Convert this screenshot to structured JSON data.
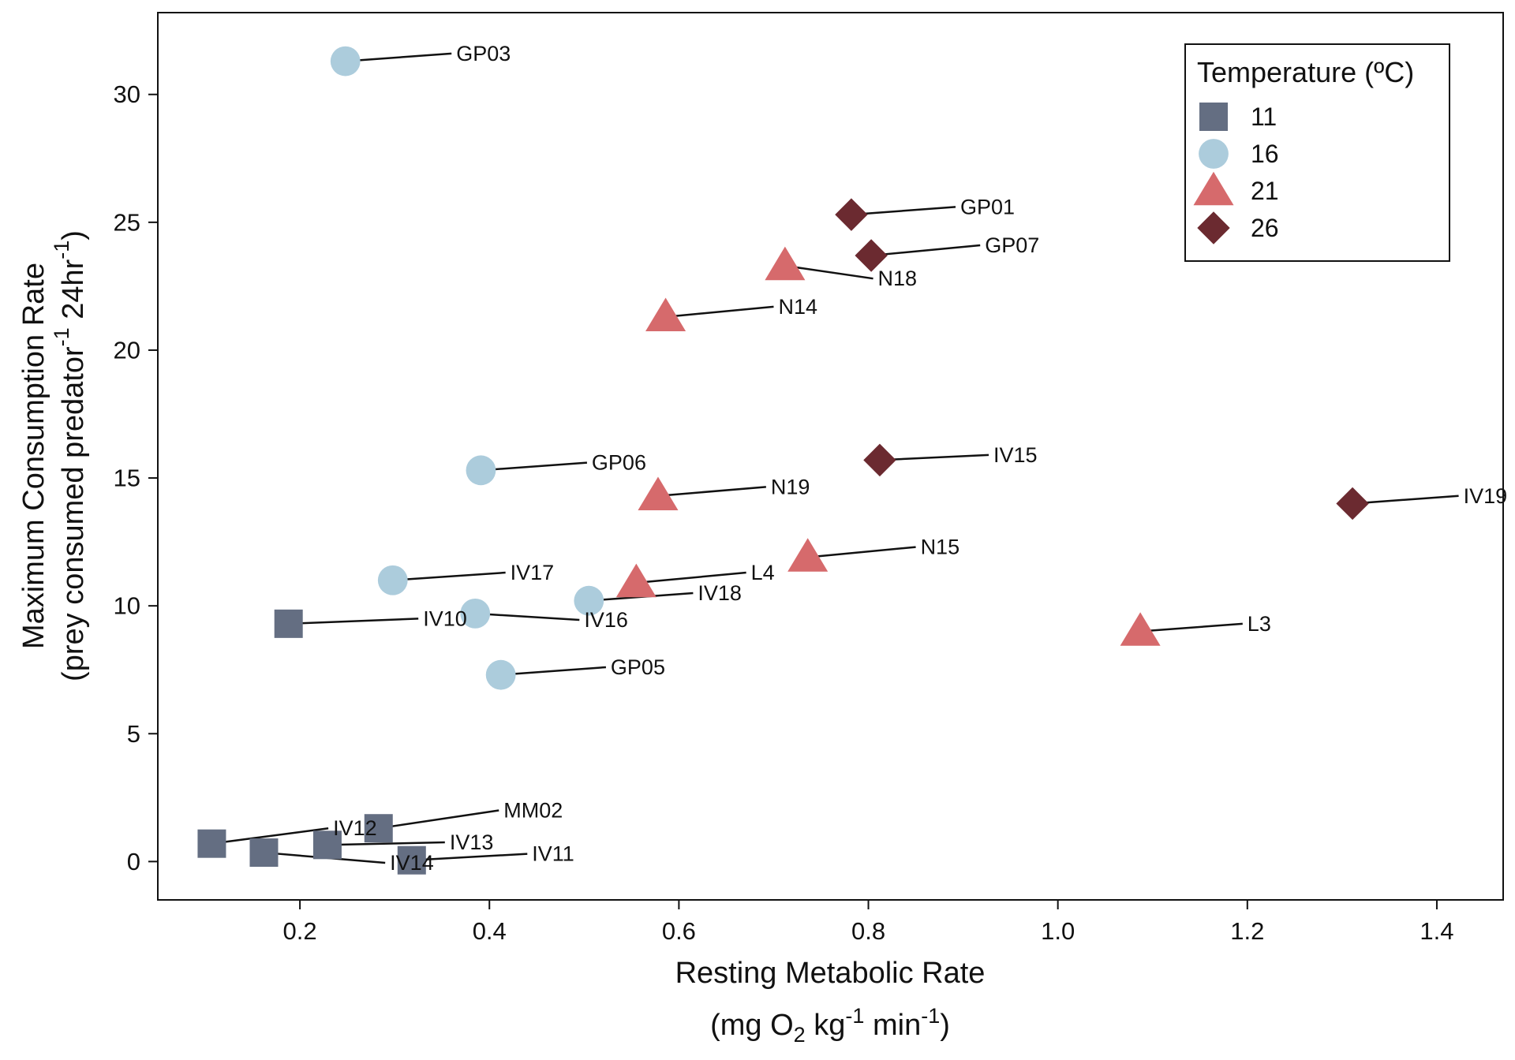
{
  "chart_data": {
    "type": "scatter",
    "xlim": [
      0.05,
      1.47
    ],
    "ylim": [
      -1.5,
      33.2
    ],
    "x_ticks": [
      0.2,
      0.4,
      0.6,
      0.8,
      1.0,
      1.2,
      1.4
    ],
    "x_tick_labels": [
      "0.2",
      "0.4",
      "0.6",
      "0.8",
      "1.0",
      "1.2",
      "1.4"
    ],
    "y_ticks": [
      0,
      5,
      10,
      15,
      20,
      25,
      30
    ],
    "y_tick_labels": [
      "0",
      "5",
      "10",
      "15",
      "20",
      "25",
      "30"
    ],
    "xlabel": {
      "line1": "Resting Metabolic Rate",
      "line2_a": "(mg O",
      "line2_sub": "2",
      "line2_b": " kg",
      "line2_sup": "-1",
      "line2_c": " min",
      "line2_sup2": "-1",
      "line2_d": ")"
    },
    "ylabel": {
      "line1": "Maximum Consumption Rate",
      "line2_a": "(prey consumed predator",
      "line2_sup": "-1",
      "line2_b": " 24hr",
      "line2_sup2": "-1",
      "line2_c": ")"
    },
    "grid": false,
    "legend": {
      "title": "Temperature (ºC)",
      "placement": "top-right",
      "entries": [
        {
          "label": "11",
          "shape": "square",
          "color": "#646e82"
        },
        {
          "label": "16",
          "shape": "circle",
          "color": "#acccdc"
        },
        {
          "label": "21",
          "shape": "triangle",
          "color": "#d66a6c"
        },
        {
          "label": "26",
          "shape": "diamond",
          "color": "#6b2a30"
        }
      ]
    },
    "series": [
      {
        "name": "11",
        "shape": "square",
        "color": "#646e82",
        "points": [
          {
            "id": "IV10",
            "x": 0.188,
            "y": 9.3,
            "lx": 0.33,
            "ly": 9.5
          },
          {
            "id": "IV12",
            "x": 0.107,
            "y": 0.7,
            "lx": 0.235,
            "ly": 1.3
          },
          {
            "id": "IV14",
            "x": 0.162,
            "y": 0.35,
            "lx": 0.295,
            "ly": -0.05
          },
          {
            "id": "IV13",
            "x": 0.229,
            "y": 0.65,
            "lx": 0.358,
            "ly": 0.75
          },
          {
            "id": "MM02",
            "x": 0.283,
            "y": 1.3,
            "lx": 0.415,
            "ly": 2.0
          },
          {
            "id": "IV11",
            "x": 0.318,
            "y": 0.05,
            "lx": 0.445,
            "ly": 0.3
          }
        ]
      },
      {
        "name": "16",
        "shape": "circle",
        "color": "#acccdc",
        "points": [
          {
            "id": "GP03",
            "x": 0.248,
            "y": 31.3,
            "lx": 0.365,
            "ly": 31.6
          },
          {
            "id": "GP06",
            "x": 0.391,
            "y": 15.3,
            "lx": 0.508,
            "ly": 15.6
          },
          {
            "id": "IV17",
            "x": 0.298,
            "y": 11.0,
            "lx": 0.422,
            "ly": 11.3
          },
          {
            "id": "IV16",
            "x": 0.385,
            "y": 9.7,
            "lx": 0.5,
            "ly": 9.45
          },
          {
            "id": "IV18",
            "x": 0.505,
            "y": 10.2,
            "lx": 0.62,
            "ly": 10.5
          },
          {
            "id": "GP05",
            "x": 0.412,
            "y": 7.3,
            "lx": 0.528,
            "ly": 7.6
          }
        ]
      },
      {
        "name": "21",
        "shape": "triangle",
        "color": "#d66a6c",
        "points": [
          {
            "id": "N18",
            "x": 0.712,
            "y": 23.3,
            "lx": 0.81,
            "ly": 22.8
          },
          {
            "id": "N14",
            "x": 0.586,
            "y": 21.3,
            "lx": 0.705,
            "ly": 21.7
          },
          {
            "id": "N19",
            "x": 0.578,
            "y": 14.3,
            "lx": 0.697,
            "ly": 14.65
          },
          {
            "id": "N15",
            "x": 0.736,
            "y": 11.9,
            "lx": 0.855,
            "ly": 12.3
          },
          {
            "id": "L4",
            "x": 0.555,
            "y": 10.9,
            "lx": 0.676,
            "ly": 11.3
          },
          {
            "id": "L3",
            "x": 1.087,
            "y": 9.0,
            "lx": 1.2,
            "ly": 9.3
          }
        ]
      },
      {
        "name": "26",
        "shape": "diamond",
        "color": "#6b2a30",
        "points": [
          {
            "id": "GP01",
            "x": 0.782,
            "y": 25.3,
            "lx": 0.897,
            "ly": 25.6
          },
          {
            "id": "GP07",
            "x": 0.803,
            "y": 23.7,
            "lx": 0.923,
            "ly": 24.1
          },
          {
            "id": "IV15",
            "x": 0.812,
            "y": 15.7,
            "lx": 0.932,
            "ly": 15.9
          },
          {
            "id": "IV19",
            "x": 1.311,
            "y": 14.0,
            "lx": 1.428,
            "ly": 14.3
          }
        ]
      }
    ]
  }
}
